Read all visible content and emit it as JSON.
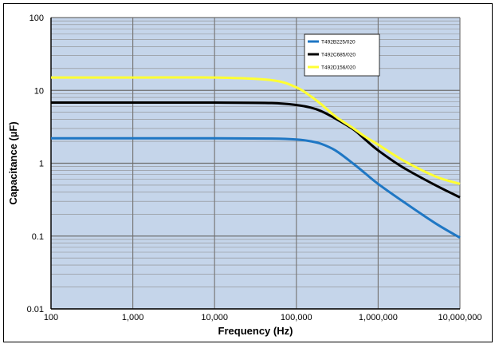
{
  "chart_data": {
    "type": "line",
    "xlabel": "Frequency (Hz)",
    "ylabel": "Capacitance (µF)",
    "x_scale": "log",
    "y_scale": "log",
    "xlim": [
      100,
      10000000
    ],
    "ylim": [
      0.01,
      100
    ],
    "x_ticks": [
      100,
      1000,
      10000,
      100000,
      1000000,
      10000000
    ],
    "x_tick_labels": [
      "100",
      "1,000",
      "10,000",
      "100,000",
      "1,000,000",
      "10,000,000"
    ],
    "y_ticks": [
      0.01,
      0.1,
      1,
      10,
      100
    ],
    "y_tick_labels": [
      "0.01",
      "0.1",
      "1",
      "10",
      "100"
    ],
    "grid": true,
    "legend_position": "top-right",
    "plot_background": "#c5d5ea",
    "series": [
      {
        "name": "T492B225/020",
        "color": "#1f77c4",
        "x": [
          100,
          1000,
          10000,
          50000,
          100000,
          150000,
          200000,
          300000,
          500000,
          700000,
          1000000,
          2000000,
          5000000,
          10000000
        ],
        "y": [
          2.2,
          2.2,
          2.2,
          2.18,
          2.12,
          2.0,
          1.85,
          1.5,
          0.98,
          0.72,
          0.52,
          0.3,
          0.15,
          0.095
        ]
      },
      {
        "name": "T492C685/020",
        "color": "#000000",
        "x": [
          100,
          1000,
          10000,
          50000,
          100000,
          150000,
          200000,
          300000,
          500000,
          700000,
          1000000,
          2000000,
          5000000,
          10000000
        ],
        "y": [
          6.8,
          6.8,
          6.8,
          6.7,
          6.3,
          5.8,
          5.2,
          4.1,
          2.9,
          2.1,
          1.5,
          0.88,
          0.5,
          0.34
        ]
      },
      {
        "name": "T492D156/020",
        "color": "#ffff33",
        "x": [
          100,
          1000,
          10000,
          50000,
          100000,
          150000,
          200000,
          300000,
          500000,
          700000,
          1000000,
          2000000,
          5000000,
          10000000
        ],
        "y": [
          15,
          15,
          15,
          13.8,
          11,
          8.3,
          6.5,
          4.4,
          3.0,
          2.3,
          1.8,
          1.1,
          0.66,
          0.52
        ]
      }
    ]
  }
}
